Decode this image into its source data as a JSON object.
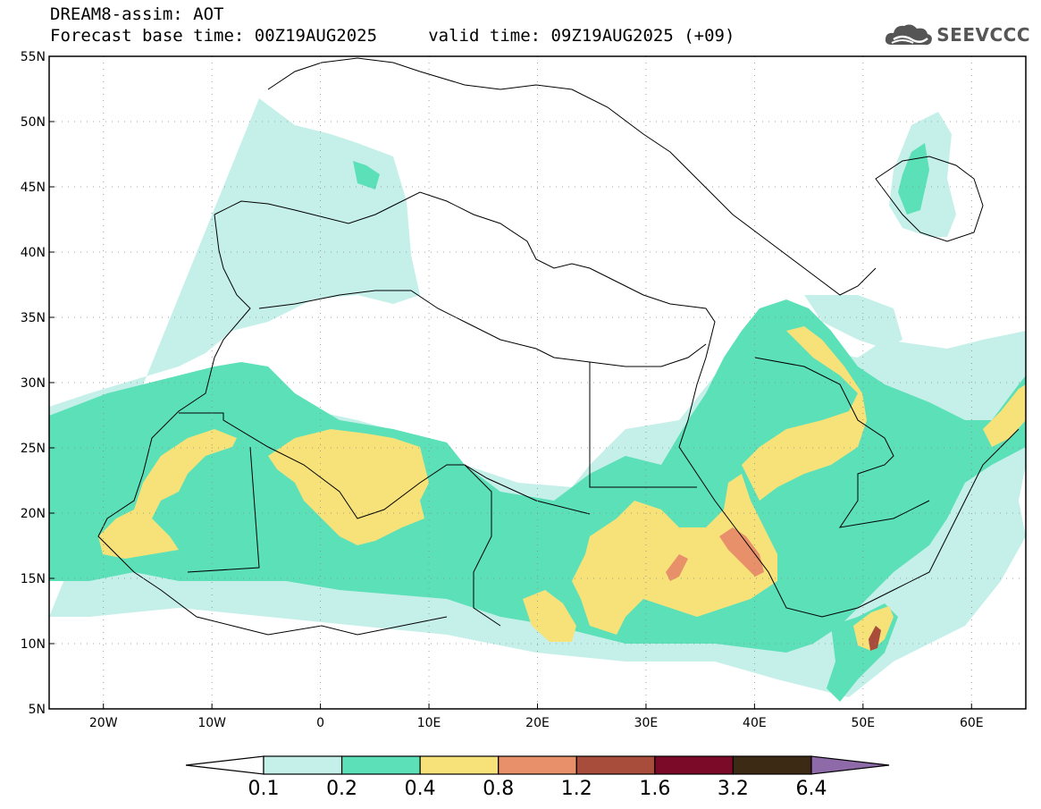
{
  "header": {
    "title_line1": "DREAM8-assim: AOT",
    "title_line2": "Forecast base time: 00Z19AUG2025     valid time: 09Z19AUG2025 (+09)",
    "logo_text": "SEEVCCC"
  },
  "map": {
    "lon_range": [
      -25,
      65
    ],
    "lat_range": [
      5,
      55
    ],
    "lon_labels": [
      {
        "lon": -20,
        "label": "20W"
      },
      {
        "lon": -10,
        "label": "10W"
      },
      {
        "lon": 0,
        "label": "0"
      },
      {
        "lon": 10,
        "label": "10E"
      },
      {
        "lon": 20,
        "label": "20E"
      },
      {
        "lon": 30,
        "label": "30E"
      },
      {
        "lon": 40,
        "label": "40E"
      },
      {
        "lon": 50,
        "label": "50E"
      },
      {
        "lon": 60,
        "label": "60E"
      }
    ],
    "lat_labels": [
      {
        "lat": 55,
        "label": "55N"
      },
      {
        "lat": 50,
        "label": "50N"
      },
      {
        "lat": 45,
        "label": "45N"
      },
      {
        "lat": 40,
        "label": "40N"
      },
      {
        "lat": 35,
        "label": "35N"
      },
      {
        "lat": 30,
        "label": "30N"
      },
      {
        "lat": 25,
        "label": "25N"
      },
      {
        "lat": 20,
        "label": "20N"
      },
      {
        "lat": 15,
        "label": "15N"
      },
      {
        "lat": 10,
        "label": "10N"
      },
      {
        "lat": 5,
        "label": "5N"
      }
    ]
  },
  "colorbar": {
    "levels": [
      "0.1",
      "0.2",
      "0.4",
      "0.8",
      "1.2",
      "1.6",
      "3.2",
      "6.4"
    ],
    "colors": [
      "#c5f0ea",
      "#5ce0b8",
      "#f7e27a",
      "#e8906a",
      "#a84c3c",
      "#7a0a28",
      "#3d2a14",
      "#8f6aa8"
    ]
  }
}
